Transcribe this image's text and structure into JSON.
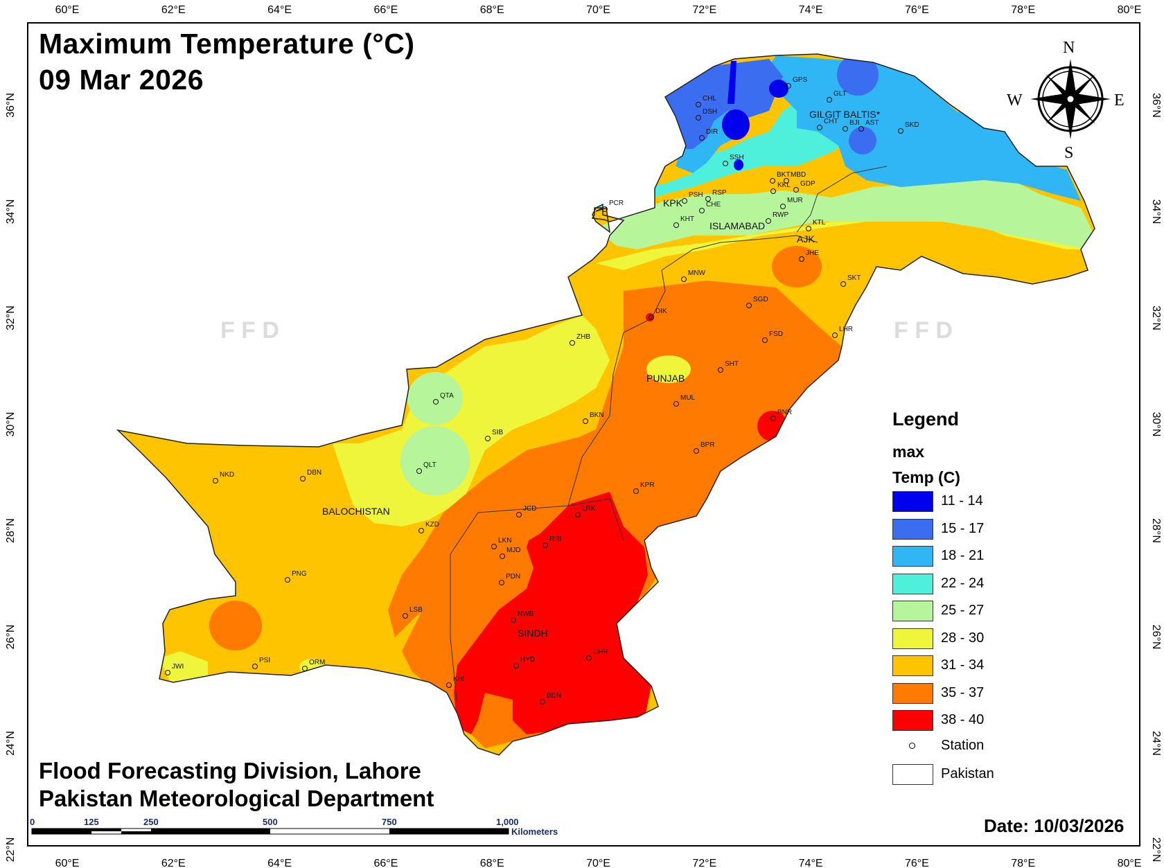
{
  "map": {
    "title_line1": "Maximum Temperature (°C)",
    "title_line2": "09 Mar 2026",
    "credit_line1": "Flood Forecasting Division, Lahore",
    "credit_line2": "Pakistan Meteorological Department",
    "date": "Date: 10/03/2026",
    "watermark_left": "F F D",
    "watermark_right": "F F D"
  },
  "axes": {
    "longitude_labels": [
      "60°E",
      "62°E",
      "64°E",
      "66°E",
      "68°E",
      "70°E",
      "72°E",
      "74°E",
      "76°E",
      "78°E",
      "80°E"
    ],
    "latitude_labels": [
      "36°N",
      "34°N",
      "32°N",
      "30°N",
      "28°N",
      "26°N",
      "24°N",
      "22°N"
    ]
  },
  "compass": {
    "n": "N",
    "s": "S",
    "e": "E",
    "w": "W"
  },
  "scale_bar": {
    "ticks": [
      "0",
      "125",
      "250",
      "500",
      "750",
      "1,000"
    ],
    "unit": "Kilometers"
  },
  "legend": {
    "title": "Legend",
    "field": "max",
    "subtitle": "Temp (C)",
    "classes": [
      {
        "label": "11 - 14",
        "color": "#0000ee"
      },
      {
        "label": "15 - 17",
        "color": "#3a6df0"
      },
      {
        "label": "18 - 21",
        "color": "#30b6f5"
      },
      {
        "label": "22 - 24",
        "color": "#4ef0dc"
      },
      {
        "label": "25 - 27",
        "color": "#b6f59a"
      },
      {
        "label": "28 - 30",
        "color": "#eef53a"
      },
      {
        "label": "31 - 34",
        "color": "#ffc400"
      },
      {
        "label": "35 - 37",
        "color": "#ff7a00"
      },
      {
        "label": "38 - 40",
        "color": "#ff0000"
      }
    ],
    "station_label": "Station",
    "boundary_label": "Pakistan"
  },
  "regions": [
    "BALOCHISTAN",
    "PUNJAB",
    "SINDH",
    "KPK",
    "ISLAMABAD",
    "AJK",
    "GILGIT BALTIS*"
  ],
  "stations": [
    "GPS",
    "CHL",
    "DSH",
    "DIR",
    "GLT",
    "CHT",
    "BJI",
    "AST",
    "SKD",
    "SSH",
    "BKT",
    "MBD",
    "KKL",
    "GDP",
    "MUR",
    "PCR",
    "PSH",
    "RSP",
    "CHE",
    "KHT",
    "RWP",
    "KTL",
    "JHE",
    "MNW",
    "SKT",
    "DIK",
    "SGD",
    "FSD",
    "LHR",
    "ZHB",
    "SHT",
    "QTA",
    "MUL",
    "BNR",
    "SIB",
    "BKN",
    "BPR",
    "QLT",
    "NKD",
    "DBN",
    "KPR",
    "JCD",
    "LRK",
    "KZD",
    "RRI",
    "LKN",
    "MJD",
    "PDN",
    "PNG",
    "LSB",
    "NWB",
    "PSI",
    "ORM",
    "JWI",
    "HYD",
    "CHR",
    "KHI",
    "BDN"
  ]
}
